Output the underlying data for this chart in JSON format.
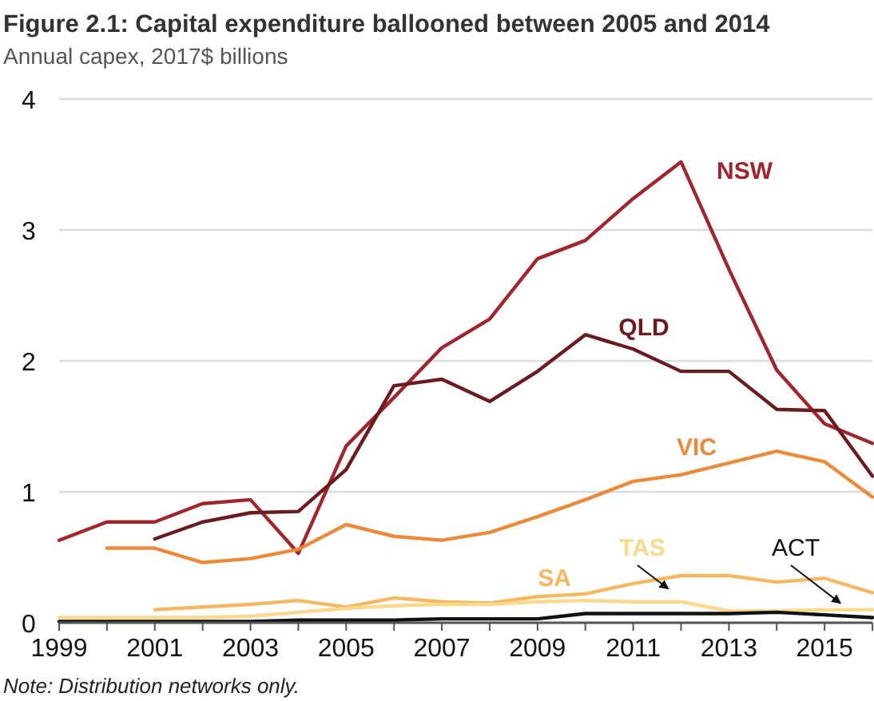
{
  "chart_data": {
    "type": "line",
    "title": "Figure 2.1: Capital expenditure ballooned between 2005 and 2014",
    "subtitle": "Annual capex, 2017$ billions",
    "x": [
      1999,
      2000,
      2001,
      2002,
      2003,
      2004,
      2005,
      2006,
      2007,
      2008,
      2009,
      2010,
      2011,
      2012,
      2013,
      2014,
      2015,
      2016
    ],
    "series": [
      {
        "name": "NSW",
        "color": "#a0252d",
        "values": [
          0.63,
          0.77,
          0.77,
          0.91,
          0.94,
          0.53,
          1.35,
          1.72,
          2.1,
          2.32,
          2.78,
          2.92,
          3.24,
          3.52,
          2.7,
          1.93,
          1.52,
          1.37
        ]
      },
      {
        "name": "QLD",
        "color": "#6b1a1e",
        "values": [
          null,
          null,
          0.64,
          0.77,
          0.84,
          0.85,
          1.17,
          1.81,
          1.86,
          1.69,
          1.92,
          2.2,
          2.09,
          1.92,
          1.92,
          1.63,
          1.62,
          1.12
        ]
      },
      {
        "name": "VIC",
        "color": "#ec8a3a",
        "values": [
          null,
          0.57,
          0.57,
          0.46,
          0.49,
          0.56,
          0.75,
          0.66,
          0.63,
          0.69,
          0.81,
          0.94,
          1.08,
          1.13,
          1.22,
          1.31,
          1.23,
          0.96
        ]
      },
      {
        "name": "SA",
        "color": "#f5b860",
        "values": [
          null,
          null,
          0.1,
          0.12,
          0.14,
          0.17,
          0.12,
          0.19,
          0.16,
          0.15,
          0.2,
          0.22,
          0.3,
          0.36,
          0.36,
          0.31,
          0.34,
          0.23
        ]
      },
      {
        "name": "TAS",
        "color": "#fad98c",
        "values": [
          0.04,
          0.04,
          0.04,
          0.04,
          0.05,
          0.08,
          0.11,
          0.13,
          0.14,
          0.14,
          0.16,
          0.17,
          0.16,
          0.16,
          0.09,
          0.09,
          0.1,
          0.1
        ]
      },
      {
        "name": "ACT",
        "color": "#111111",
        "values": [
          0.01,
          0.01,
          0.01,
          0.01,
          0.01,
          0.02,
          0.02,
          0.02,
          0.03,
          0.03,
          0.03,
          0.07,
          0.07,
          0.07,
          0.07,
          0.08,
          0.06,
          0.04
        ]
      }
    ],
    "xlim": [
      1999,
      2016
    ],
    "xticks": [
      1999,
      {
        "value": 2000,
        "label": null
      },
      2001,
      {
        "value": 2002,
        "label": null
      },
      2003,
      {
        "value": 2004,
        "label": null
      },
      2005,
      {
        "value": 2006,
        "label": null
      },
      2007,
      {
        "value": 2008,
        "label": null
      },
      2009,
      {
        "value": 2010,
        "label": null
      },
      2011,
      {
        "value": 2012,
        "label": null
      },
      2013,
      {
        "value": 2014,
        "label": null
      },
      2015,
      {
        "value": 2016,
        "label": null
      }
    ],
    "ylim": [
      0,
      4
    ],
    "yticks": [
      0,
      1,
      2,
      3,
      4
    ],
    "grid": "y",
    "legend": false,
    "marker": "none",
    "line_style": "solid",
    "annotations": [
      "Note: Distribution networks only."
    ]
  }
}
